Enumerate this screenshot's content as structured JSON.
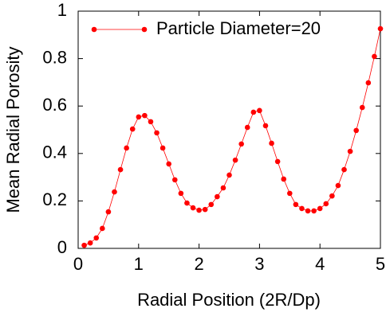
{
  "chart_data": {
    "type": "line",
    "xlabel": "Radial Position (2R/Dp)",
    "ylabel": "Mean Radial Porosity",
    "xlim": [
      0,
      5
    ],
    "xticks": [
      0,
      1,
      2,
      3,
      4,
      5
    ],
    "ylim": [
      0,
      1
    ],
    "yticks": [
      0,
      0.2,
      0.4,
      0.6,
      0.8,
      1
    ],
    "legend": "top-left",
    "x": [
      0.1,
      0.2,
      0.3,
      0.4,
      0.5,
      0.6,
      0.7,
      0.8,
      0.9,
      1.0,
      1.1,
      1.2,
      1.3,
      1.4,
      1.5,
      1.6,
      1.7,
      1.8,
      1.9,
      2.0,
      2.1,
      2.2,
      2.3,
      2.4,
      2.5,
      2.6,
      2.7,
      2.8,
      2.9,
      3.0,
      3.1,
      3.2,
      3.3,
      3.4,
      3.5,
      3.6,
      3.7,
      3.8,
      3.9,
      4.0,
      4.1,
      4.2,
      4.3,
      4.4,
      4.5,
      4.6,
      4.7,
      4.8,
      4.9,
      5.0
    ],
    "series": [
      {
        "name": "Particle Diameter=20",
        "color": "#ff0000",
        "values": [
          0.013,
          0.023,
          0.044,
          0.084,
          0.154,
          0.238,
          0.332,
          0.423,
          0.503,
          0.554,
          0.56,
          0.534,
          0.487,
          0.423,
          0.356,
          0.289,
          0.232,
          0.191,
          0.171,
          0.161,
          0.164,
          0.185,
          0.218,
          0.255,
          0.309,
          0.372,
          0.44,
          0.51,
          0.574,
          0.581,
          0.517,
          0.443,
          0.366,
          0.292,
          0.232,
          0.185,
          0.168,
          0.158,
          0.158,
          0.168,
          0.188,
          0.221,
          0.265,
          0.332,
          0.409,
          0.497,
          0.594,
          0.698,
          0.809,
          0.926
        ]
      }
    ]
  }
}
